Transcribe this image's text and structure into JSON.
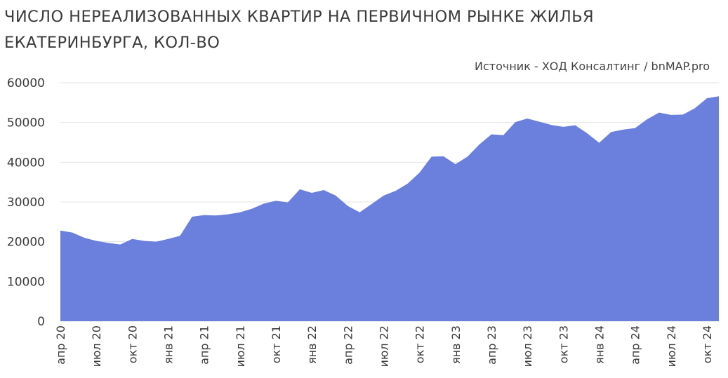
{
  "title": "ЧИСЛО НЕРЕАЛИЗОВАННЫХ КВАРТИР НА ПЕРВИЧНОМ РЫНКЕ ЖИЛЬЯ ЕКАТЕРИНБУРГА, КОЛ-ВО",
  "source": "Источник - ХОД Консалтинг / bnMAP.pro",
  "colors": {
    "area": "#6b7fdc",
    "grid": "#e3e3e3"
  },
  "chart_data": {
    "type": "area",
    "title": "ЧИСЛО НЕРЕАЛИЗОВАННЫХ КВАРТИР НА ПЕРВИЧНОМ РЫНКЕ ЖИЛЬЯ ЕКАТЕРИНБУРГА, КОЛ-ВО",
    "xlabel": "",
    "ylabel": "",
    "ylim": [
      0,
      60000
    ],
    "yticks": [
      0,
      10000,
      20000,
      30000,
      40000,
      50000,
      60000
    ],
    "grid": true,
    "legend": "none",
    "x": [
      "апр 20",
      "май 20",
      "июн 20",
      "июл 20",
      "авг 20",
      "сен 20",
      "окт 20",
      "ноя 20",
      "дек 20",
      "янв 21",
      "фев 21",
      "мар 21",
      "апр 21",
      "май 21",
      "июн 21",
      "июл 21",
      "авг 21",
      "сен 21",
      "окт 21",
      "ноя 21",
      "дек 21",
      "янв 22",
      "фев 22",
      "мар 22",
      "апр 22",
      "май 22",
      "июн 22",
      "июл 22",
      "авг 22",
      "сен 22",
      "окт 22",
      "ноя 22",
      "дек 22",
      "янв 23",
      "фев 23",
      "мар 23",
      "апр 23",
      "май 23",
      "июн 23",
      "июл 23",
      "авг 23",
      "сен 23",
      "окт 23",
      "ноя 23",
      "дек 23",
      "янв 24",
      "фев 24",
      "мар 24",
      "апр 24",
      "май 24",
      "июн 24",
      "июл 24",
      "авг 24",
      "сен 24",
      "окт 24",
      "ноя 24"
    ],
    "xticks": [
      "апр 20",
      "июл 20",
      "окт 20",
      "янв 21",
      "апр 21",
      "июл 21",
      "окт 21",
      "янв 22",
      "апр 22",
      "июл 22",
      "окт 22",
      "янв 23",
      "апр 23",
      "июл 23",
      "окт 23",
      "янв 24",
      "апр 24",
      "июл 24",
      "окт 24"
    ],
    "series": [
      {
        "values": [
          22800,
          22300,
          21000,
          20200,
          19700,
          19300,
          20700,
          20200,
          20000,
          20700,
          21500,
          26300,
          26700,
          26600,
          26900,
          27400,
          28300,
          29600,
          30300,
          29900,
          33200,
          32300,
          33000,
          31600,
          29000,
          27400,
          29500,
          31600,
          32800,
          34600,
          37400,
          41400,
          41500,
          39500,
          41400,
          44500,
          47000,
          46800,
          50100,
          51000,
          50200,
          49400,
          48900,
          49300,
          47300,
          44900,
          47600,
          48200,
          48600,
          50800,
          52500,
          51900,
          52000,
          53600,
          56100,
          56600
        ]
      }
    ]
  }
}
